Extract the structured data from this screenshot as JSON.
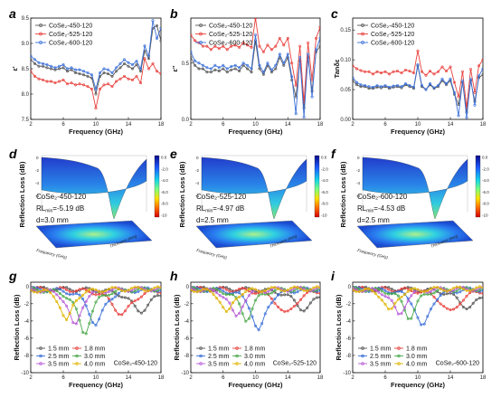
{
  "figure": {
    "panels_letters": [
      "a",
      "b",
      "c",
      "d",
      "e",
      "f",
      "g",
      "h",
      "i"
    ]
  },
  "colors": {
    "s450": "#555555",
    "s525": "#e8403c",
    "s600": "#3a6fd8",
    "t15": "#555555",
    "t18": "#e8403c",
    "t25": "#3a6fd8",
    "t30": "#49a84a",
    "t35": "#b85bd6",
    "t40": "#e0b400"
  },
  "chart_data": [
    {
      "id": "a",
      "type": "line",
      "xlabel": "Frequency (GHz)",
      "ylabel": "ε'",
      "xlim": [
        2,
        18
      ],
      "ylim": [
        7.5,
        9.5
      ],
      "xticks": [
        2,
        6,
        10,
        14,
        18
      ],
      "yticks": [
        7.5,
        8.0,
        8.5,
        9.0,
        9.5
      ],
      "ytick_labels": [
        "7.5",
        "8.0",
        "8.5",
        "9.0",
        "9.5"
      ],
      "legend_position": "top-left",
      "x": [
        2,
        2.5,
        3,
        3.5,
        4,
        4.5,
        5,
        5.5,
        6,
        6.5,
        7,
        7.5,
        8,
        8.5,
        9,
        9.5,
        10,
        10.5,
        11,
        11.5,
        12,
        12.5,
        13,
        13.5,
        14,
        14.5,
        15,
        15.5,
        16,
        16.5,
        17,
        17.5,
        18
      ],
      "series": [
        {
          "name": "CoSe₂-450-120",
          "color_key": "s450",
          "values": [
            8.68,
            8.6,
            8.55,
            8.55,
            8.52,
            8.5,
            8.48,
            8.5,
            8.52,
            8.45,
            8.48,
            8.42,
            8.4,
            8.38,
            8.35,
            8.32,
            8.0,
            8.35,
            8.42,
            8.4,
            8.35,
            8.45,
            8.52,
            8.6,
            8.55,
            8.5,
            8.58,
            8.45,
            8.85,
            8.7,
            9.3,
            9.35,
            9.05
          ]
        },
        {
          "name": "CoSe₂-525-120",
          "color_key": "s525",
          "values": [
            8.45,
            8.35,
            8.3,
            8.28,
            8.25,
            8.25,
            8.22,
            8.25,
            8.28,
            8.2,
            8.22,
            8.18,
            8.2,
            8.18,
            8.15,
            8.1,
            7.72,
            8.1,
            8.18,
            8.2,
            8.15,
            8.25,
            8.3,
            8.35,
            8.3,
            8.28,
            8.35,
            8.22,
            8.7,
            8.5,
            8.6,
            8.45,
            8.4
          ]
        },
        {
          "name": "CoSe₂-600-120",
          "color_key": "s600",
          "values": [
            8.75,
            8.68,
            8.62,
            8.6,
            8.58,
            8.55,
            8.52,
            8.55,
            8.58,
            8.5,
            8.52,
            8.48,
            8.48,
            8.45,
            8.42,
            8.38,
            8.1,
            8.42,
            8.5,
            8.48,
            8.42,
            8.52,
            8.6,
            8.68,
            8.62,
            8.58,
            8.65,
            8.5,
            8.95,
            8.75,
            9.45,
            9.1,
            9.3
          ]
        }
      ]
    },
    {
      "id": "b",
      "type": "line",
      "xlabel": "Frequency (GHz)",
      "ylabel": "ε''",
      "xlim": [
        2,
        18
      ],
      "ylim": [
        0,
        0.9
      ],
      "xticks": [
        2,
        6,
        10,
        14,
        18
      ],
      "yticks": [
        0,
        0.5
      ],
      "ytick_labels": [
        "0.0",
        "0.5"
      ],
      "legend_position": "top-left",
      "x": [
        2,
        2.5,
        3,
        3.5,
        4,
        4.5,
        5,
        5.5,
        6,
        6.5,
        7,
        7.5,
        8,
        8.5,
        9,
        9.5,
        10,
        10.5,
        11,
        11.5,
        12,
        12.5,
        13,
        13.5,
        14,
        14.5,
        15,
        15.5,
        16,
        16.5,
        17,
        17.5,
        18
      ],
      "series": [
        {
          "name": "CoSe₂-450-120",
          "color_key": "s450",
          "values": [
            0.55,
            0.48,
            0.45,
            0.45,
            0.42,
            0.42,
            0.44,
            0.43,
            0.45,
            0.42,
            0.44,
            0.45,
            0.43,
            0.48,
            0.45,
            0.42,
            0.7,
            0.45,
            0.4,
            0.48,
            0.42,
            0.45,
            0.55,
            0.48,
            0.55,
            0.35,
            0.2,
            0.52,
            0.1,
            0.55,
            0.25,
            0.6,
            0.65
          ]
        },
        {
          "name": "CoSe₂-525-120",
          "color_key": "s525",
          "values": [
            0.75,
            0.7,
            0.68,
            0.65,
            0.65,
            0.62,
            0.65,
            0.63,
            0.65,
            0.62,
            0.65,
            0.66,
            0.64,
            0.68,
            0.66,
            0.64,
            0.9,
            0.65,
            0.6,
            0.66,
            0.62,
            0.65,
            0.72,
            0.66,
            0.72,
            0.5,
            0.3,
            0.65,
            0.15,
            0.68,
            0.35,
            0.72,
            0.82
          ]
        },
        {
          "name": "CoSe₂-600-120",
          "color_key": "s600",
          "values": [
            0.6,
            0.52,
            0.5,
            0.48,
            0.46,
            0.45,
            0.48,
            0.46,
            0.48,
            0.45,
            0.47,
            0.48,
            0.46,
            0.5,
            0.48,
            0.45,
            0.75,
            0.48,
            0.42,
            0.5,
            0.44,
            0.48,
            0.58,
            0.5,
            0.58,
            0.38,
            0.05,
            0.55,
            0.02,
            0.58,
            0.2,
            0.62,
            0.72
          ]
        }
      ]
    },
    {
      "id": "c",
      "type": "line",
      "xlabel": "Frequency (GHz)",
      "ylabel": "Tanδε",
      "xlim": [
        2,
        18
      ],
      "ylim": [
        0,
        0.17
      ],
      "xticks": [
        2,
        6,
        10,
        14,
        18
      ],
      "yticks": [
        0,
        0.05,
        0.1,
        0.15
      ],
      "ytick_labels": [
        "0.00",
        "0.05",
        "0.10",
        "0.15"
      ],
      "legend_position": "top-left",
      "x": [
        2,
        2.5,
        3,
        3.5,
        4,
        4.5,
        5,
        5.5,
        6,
        6.5,
        7,
        7.5,
        8,
        8.5,
        9,
        9.5,
        10,
        10.5,
        11,
        11.5,
        12,
        12.5,
        13,
        13.5,
        14,
        14.5,
        15,
        15.5,
        16,
        16.5,
        17,
        17.5,
        18
      ],
      "series": [
        {
          "name": "CoSe₂-450-120",
          "color_key": "s450",
          "values": [
            0.065,
            0.058,
            0.055,
            0.055,
            0.052,
            0.052,
            0.054,
            0.053,
            0.055,
            0.052,
            0.054,
            0.055,
            0.053,
            0.058,
            0.055,
            0.052,
            0.09,
            0.055,
            0.05,
            0.058,
            0.052,
            0.055,
            0.065,
            0.058,
            0.065,
            0.042,
            0.025,
            0.062,
            0.012,
            0.065,
            0.03,
            0.07,
            0.075
          ]
        },
        {
          "name": "CoSe₂-525-120",
          "color_key": "s525",
          "values": [
            0.09,
            0.085,
            0.082,
            0.08,
            0.08,
            0.076,
            0.08,
            0.078,
            0.08,
            0.076,
            0.08,
            0.081,
            0.078,
            0.083,
            0.081,
            0.078,
            0.115,
            0.08,
            0.074,
            0.081,
            0.076,
            0.08,
            0.088,
            0.081,
            0.088,
            0.062,
            0.038,
            0.08,
            0.02,
            0.084,
            0.045,
            0.09,
            0.1
          ]
        },
        {
          "name": "CoSe₂-600-120",
          "color_key": "s600",
          "values": [
            0.07,
            0.062,
            0.058,
            0.057,
            0.055,
            0.054,
            0.057,
            0.055,
            0.057,
            0.054,
            0.056,
            0.057,
            0.055,
            0.06,
            0.057,
            0.054,
            0.092,
            0.057,
            0.05,
            0.06,
            0.053,
            0.057,
            0.068,
            0.06,
            0.068,
            0.045,
            0.006,
            0.065,
            0.003,
            0.068,
            0.024,
            0.073,
            0.085
          ]
        }
      ]
    },
    {
      "id": "d",
      "type": "heatmap",
      "zlabel": "Reflection Loss (dB)",
      "xlabel": "Frequency (GHz)",
      "ylabel": "Thickness (mm)",
      "colorbar_ticks": [
        0,
        -2,
        -4,
        -6,
        -8,
        -10
      ],
      "colorbar_labels": [
        "0.0",
        "-2.0",
        "-4.0",
        "-6.0",
        "-8.0",
        "-10"
      ],
      "annotation": {
        "sample": "CoSe₂-450-120",
        "rl_prefix": "RL",
        "rl_sub": "min",
        "rl_value": "=-5.19 dB",
        "thickness": "d=3.0 mm"
      },
      "rl_min": -5.19,
      "d_mm": 3.0
    },
    {
      "id": "e",
      "type": "heatmap",
      "zlabel": "Reflection Loss (dB)",
      "xlabel": "Frequency (GHz)",
      "ylabel": "Thickness (mm)",
      "colorbar_ticks": [
        0,
        -2,
        -4,
        -6,
        -8,
        -10
      ],
      "colorbar_labels": [
        "0.0",
        "-2.0",
        "-4.0",
        "-6.0",
        "-8.0",
        "-10"
      ],
      "annotation": {
        "sample": "CoSe₂-525-120",
        "rl_prefix": "RL",
        "rl_sub": "min",
        "rl_value": "=-4.97 dB",
        "thickness": "d=2.5 mm"
      },
      "rl_min": -4.97,
      "d_mm": 2.5
    },
    {
      "id": "f",
      "type": "heatmap",
      "zlabel": "Reflection Loss (dB)",
      "xlabel": "Frequency (GHz)",
      "ylabel": "Thickness (mm)",
      "colorbar_ticks": [
        0,
        -2,
        -4,
        -6,
        -8,
        -10
      ],
      "colorbar_labels": [
        "0.0",
        "-2.0",
        "-4.0",
        "-6.0",
        "-8.0",
        "-10"
      ],
      "annotation": {
        "sample": "CoSe₂-600-120",
        "rl_prefix": "RL",
        "rl_sub": "min",
        "rl_value": "=-4.53 dB",
        "thickness": "d=2.5 mm"
      },
      "rl_min": -4.53,
      "d_mm": 2.5
    },
    {
      "id": "g",
      "type": "line",
      "xlabel": "Frequency (GHz)",
      "ylabel": "Reflection Loss (dB)",
      "xlim": [
        2,
        18
      ],
      "ylim": [
        -10,
        0.5
      ],
      "xticks": [
        2,
        6,
        10,
        14,
        18
      ],
      "yticks": [
        0,
        -2,
        -4,
        -6,
        -8,
        -10
      ],
      "ytick_labels": [
        "0",
        "-2",
        "-4",
        "-6",
        "-8",
        "-10"
      ],
      "legend_position": "bottom-left",
      "sample_label": "CoSe₂-450-120",
      "series": [
        {
          "name": "1.5 mm",
          "color_key": "t15",
          "f0": 15.5,
          "min": -2.6,
          "w": 3.0
        },
        {
          "name": "1.8 mm",
          "color_key": "t18",
          "f0": 13.2,
          "min": -3.0,
          "w": 2.8
        },
        {
          "name": "2.5 mm",
          "color_key": "t25",
          "f0": 10.0,
          "min": -4.2,
          "w": 2.2
        },
        {
          "name": "3.0 mm",
          "color_key": "t30",
          "f0": 8.6,
          "min": -5.19,
          "w": 2.0
        },
        {
          "name": "3.5 mm",
          "color_key": "t35",
          "f0": 7.4,
          "min": -4.4,
          "w": 1.8
        },
        {
          "name": "4.0 mm",
          "color_key": "t40",
          "f0": 6.4,
          "min": -3.8,
          "w": 1.7
        }
      ]
    },
    {
      "id": "h",
      "type": "line",
      "xlabel": "Frequency (GHz)",
      "ylabel": "Reflection Loss (dB)",
      "xlim": [
        2,
        18
      ],
      "ylim": [
        -10,
        0.5
      ],
      "xticks": [
        2,
        6,
        10,
        14,
        18
      ],
      "yticks": [
        0,
        -2,
        -4,
        -6,
        -8,
        -10
      ],
      "ytick_labels": [
        "0",
        "-2",
        "-4",
        "-6",
        "-8",
        "-10"
      ],
      "legend_position": "bottom-left",
      "sample_label": "CoSe₂-525-120",
      "series": [
        {
          "name": "1.5 mm",
          "color_key": "t15",
          "f0": 16.0,
          "min": -2.4,
          "w": 3.0
        },
        {
          "name": "1.8 mm",
          "color_key": "t18",
          "f0": 13.8,
          "min": -2.9,
          "w": 2.8
        },
        {
          "name": "2.5 mm",
          "color_key": "t25",
          "f0": 10.4,
          "min": -4.97,
          "w": 2.0
        },
        {
          "name": "3.0 mm",
          "color_key": "t30",
          "f0": 8.9,
          "min": -3.6,
          "w": 1.9
        },
        {
          "name": "3.5 mm",
          "color_key": "t35",
          "f0": 7.6,
          "min": -3.3,
          "w": 1.8
        },
        {
          "name": "4.0 mm",
          "color_key": "t40",
          "f0": 6.5,
          "min": -2.9,
          "w": 1.7
        }
      ]
    },
    {
      "id": "i",
      "type": "line",
      "xlabel": "Frequency (GHz)",
      "ylabel": "Reflection Loss (dB)",
      "xlim": [
        2,
        18
      ],
      "ylim": [
        -10,
        0.5
      ],
      "xticks": [
        2,
        6,
        10,
        14,
        18
      ],
      "yticks": [
        0,
        -2,
        -4,
        -6,
        -8,
        -10
      ],
      "ytick_labels": [
        "0",
        "-2",
        "-4",
        "-6",
        "-8",
        "-10"
      ],
      "legend_position": "bottom-left",
      "sample_label": "CoSe₂-600-120",
      "series": [
        {
          "name": "1.5 mm",
          "color_key": "t15",
          "f0": 16.2,
          "min": -2.2,
          "w": 3.0
        },
        {
          "name": "1.8 mm",
          "color_key": "t18",
          "f0": 14.0,
          "min": -2.7,
          "w": 2.8
        },
        {
          "name": "2.5 mm",
          "color_key": "t25",
          "f0": 10.6,
          "min": -4.53,
          "w": 2.0
        },
        {
          "name": "3.0 mm",
          "color_key": "t30",
          "f0": 9.0,
          "min": -3.4,
          "w": 1.9
        },
        {
          "name": "3.5 mm",
          "color_key": "t35",
          "f0": 7.7,
          "min": -3.1,
          "w": 1.8
        },
        {
          "name": "4.0 mm",
          "color_key": "t40",
          "f0": 6.6,
          "min": -2.7,
          "w": 1.7
        }
      ]
    }
  ]
}
